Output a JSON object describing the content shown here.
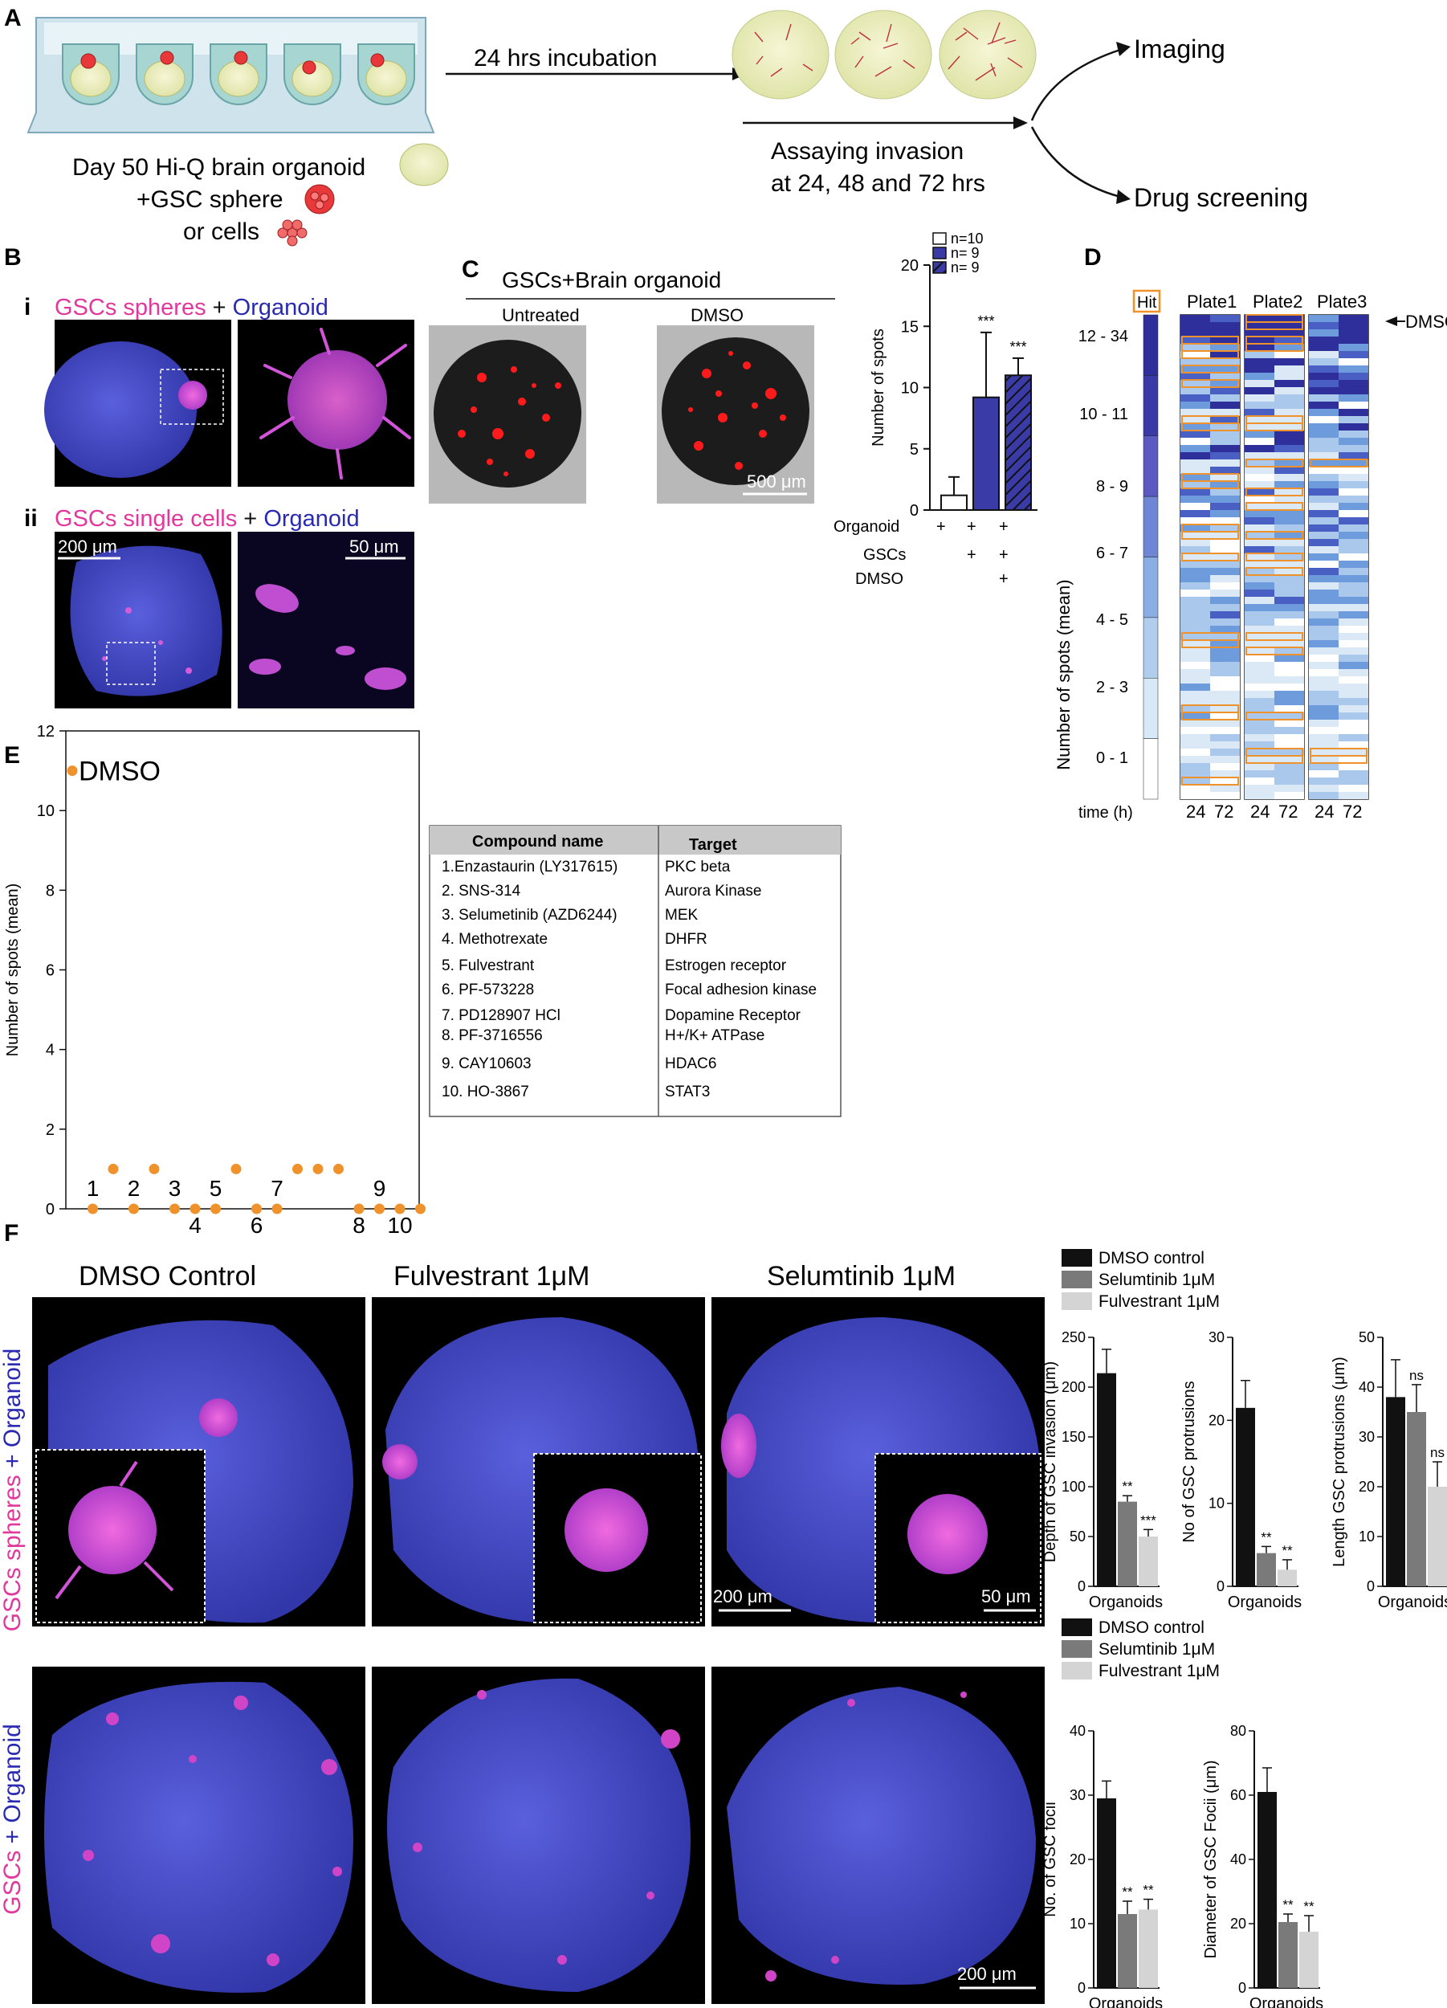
{
  "panel_labels": {
    "A": "A",
    "B": "B",
    "C": "C",
    "D": "D",
    "E": "E",
    "F": "F"
  },
  "panel_a": {
    "incubation": "24 hrs incubation",
    "legend_line1": "Day 50 Hi-Q brain organoid",
    "legend_line2": "+GSC sphere",
    "legend_line3": "or cells",
    "assay_line1": "Assaying invasion",
    "assay_line2": "at 24, 48 and 72 hrs",
    "imaging": "Imaging",
    "drug_screening": "Drug screening"
  },
  "panel_b": {
    "row_i": "i",
    "row_i_title_a": "GSCs spheres",
    "row_i_title_plus": " + ",
    "row_i_title_b": "Organoid",
    "row_ii": "ii",
    "row_ii_title_a": "GSCs single cells",
    "row_ii_title_plus": " + ",
    "row_ii_title_b": "Organoid",
    "scale_left": "200 μm",
    "scale_right": "50 μm"
  },
  "panel_c": {
    "title": "GSCs+Brain organoid",
    "untreated": "Untreated",
    "dmso": "DMSO",
    "scale": "500 μm",
    "row_organoid": "Organoid",
    "row_gscs": "GSCs",
    "row_dmso": "DMSO",
    "plus": "+"
  },
  "panel_d": {
    "hit": "Hit",
    "plate1": "Plate1",
    "plate2": "Plate2",
    "plate3": "Plate3",
    "dmso": "DMSO",
    "ylabel": "Number of spots (mean)",
    "time_label": "time (h)",
    "bins": [
      "12 - 34",
      "10 - 11",
      "8 - 9",
      "6 - 7",
      "4 - 5",
      "2 - 3",
      "0 - 1"
    ],
    "t24": "24",
    "t72": "72"
  },
  "panel_e": {
    "table_headers": [
      "Compound name",
      "Target"
    ],
    "compounds": [
      [
        "1.Enzastaurin (LY317615)",
        "PKC beta"
      ],
      [
        "2. SNS-314",
        "Aurora Kinase"
      ],
      [
        "3. Selumetinib (AZD6244)",
        "MEK"
      ],
      [
        "4. Methotrexate",
        "DHFR"
      ],
      [
        "5. Fulvestrant",
        "Estrogen receptor"
      ],
      [
        "6. PF-573228",
        "Focal adhesion kinase"
      ],
      [
        "7. PD128907 HCl",
        "Dopamine Receptor"
      ],
      [
        "8. PF-3716556",
        "H+/K+ ATPase"
      ],
      [
        "9. CAY10603",
        "HDAC6"
      ],
      [
        "10. HO-3867",
        "STAT3"
      ]
    ]
  },
  "panel_f": {
    "col_titles": [
      "DMSO Control",
      "Fulvestrant 1μM",
      "Selumtinib 1μM"
    ],
    "row1_label_a": "GSCs spheres",
    "row1_label_b": " + Organoid",
    "row2_label_a": "GSCs",
    "row2_label_b": " + Organoid",
    "scale_200": "200 μm",
    "scale_50": "50 μm"
  },
  "colors": {
    "dmso": "#111111",
    "selumetinib": "#7a7a7a",
    "fulvestrant": "#d4d4d4",
    "navy": "#3b3ba8",
    "orange": "#f0922b",
    "magenta": "#e0389c",
    "tissue": "#3f44c8"
  },
  "chart_data": [
    {
      "id": "C",
      "type": "bar",
      "categories": [
        "n=10",
        "n= 9",
        "n= 9"
      ],
      "values": [
        1.2,
        9.2,
        11.0
      ],
      "errors": [
        1.5,
        5.3,
        1.4
      ],
      "sig": [
        "",
        "***",
        "***"
      ],
      "ylabel": "Number of spots",
      "ylim": [
        0,
        20
      ],
      "yticks": [
        0,
        5,
        10,
        15,
        20
      ],
      "legend": [
        "n=10",
        "n= 9",
        "n= 9"
      ]
    },
    {
      "id": "E",
      "type": "scatter",
      "ylabel": "Number of spots (mean)",
      "ylim": [
        0,
        12
      ],
      "yticks": [
        0,
        2,
        4,
        6,
        8,
        10,
        12
      ],
      "x": [
        1,
        2,
        3,
        4,
        5,
        6,
        7,
        8,
        9,
        10,
        11,
        12,
        13,
        14,
        15,
        16,
        17,
        18
      ],
      "y": [
        11,
        0,
        1,
        0,
        1,
        0,
        0,
        0,
        1,
        0,
        0,
        1,
        1,
        1,
        0,
        0,
        0,
        0
      ],
      "point_labels": [
        {
          "text": "DMSO",
          "idx": 0
        },
        {
          "text": "1",
          "idx": 1
        },
        {
          "text": "2",
          "idx": 3
        },
        {
          "text": "3",
          "idx": 5
        },
        {
          "text": "4",
          "idx": 6
        },
        {
          "text": "5",
          "idx": 7
        },
        {
          "text": "6",
          "idx": 9
        },
        {
          "text": "7",
          "idx": 10
        },
        {
          "text": "8",
          "idx": 14
        },
        {
          "text": "9",
          "idx": 15
        },
        {
          "text": "10",
          "idx": 16
        }
      ]
    },
    {
      "id": "F-depth",
      "type": "bar",
      "ylabel": "Depth of GSC invasion (μm)",
      "xlabel": "Organoids",
      "series": [
        {
          "name": "DMSO control",
          "value": 214,
          "err": 24
        },
        {
          "name": "Selumtinib 1μM",
          "value": 85,
          "err": 6
        },
        {
          "name": "Fulvestrant 1μM",
          "value": 50,
          "err": 7
        }
      ],
      "sig": [
        "",
        "**",
        "***"
      ],
      "ylim": [
        0,
        250
      ],
      "yticks": [
        0,
        50,
        100,
        150,
        200,
        250
      ]
    },
    {
      "id": "F-protrusions",
      "type": "bar",
      "ylabel": "No of GSC protrusions",
      "xlabel": "Organoids",
      "series": [
        {
          "name": "DMSO control",
          "value": 21.5,
          "err": 3.3
        },
        {
          "name": "Selumtinib 1μM",
          "value": 4,
          "err": 0.8
        },
        {
          "name": "Fulvestrant 1μM",
          "value": 2,
          "err": 1.2
        }
      ],
      "sig": [
        "",
        "**",
        "**"
      ],
      "ylim": [
        0,
        30
      ],
      "yticks": [
        0,
        10,
        20,
        30
      ]
    },
    {
      "id": "F-length",
      "type": "bar",
      "ylabel": "Length GSC protrusions (μm)",
      "xlabel": "Organoids",
      "series": [
        {
          "name": "DMSO control",
          "value": 38,
          "err": 7.5
        },
        {
          "name": "Selumtinib 1μM",
          "value": 35,
          "err": 5.5
        },
        {
          "name": "Fulvestrant 1μM",
          "value": 20,
          "err": 5
        }
      ],
      "sig": [
        "",
        "ns",
        "ns"
      ],
      "ylim": [
        0,
        50
      ],
      "yticks": [
        0,
        10,
        20,
        30,
        40,
        50
      ]
    },
    {
      "id": "F-foci",
      "type": "bar",
      "ylabel": "No. of GSC focii",
      "xlabel": "Organoids",
      "series": [
        {
          "name": "DMSO control",
          "value": 29.5,
          "err": 2.7
        },
        {
          "name": "Selumtinib 1μM",
          "value": 11.5,
          "err": 2
        },
        {
          "name": "Fulvestrant 1μM",
          "value": 12.2,
          "err": 1.6
        }
      ],
      "sig": [
        "",
        "**",
        "**"
      ],
      "ylim": [
        0,
        40
      ],
      "yticks": [
        0,
        10,
        20,
        30,
        40
      ]
    },
    {
      "id": "F-diameter",
      "type": "bar",
      "ylabel": "Diameter of GSC Focii (μm)",
      "xlabel": "Organoids",
      "series": [
        {
          "name": "DMSO control",
          "value": 61,
          "err": 7.5
        },
        {
          "name": "Selumtinib 1μM",
          "value": 20.5,
          "err": 2.5
        },
        {
          "name": "Fulvestrant 1μM",
          "value": 17.5,
          "err": 5
        }
      ],
      "sig": [
        "",
        "**",
        "**"
      ],
      "ylim": [
        0,
        80
      ],
      "yticks": [
        0,
        20,
        40,
        60,
        80
      ]
    }
  ],
  "f_legend": [
    "DMSO control",
    "Selumtinib 1μM",
    "Fulvestrant 1μM"
  ]
}
